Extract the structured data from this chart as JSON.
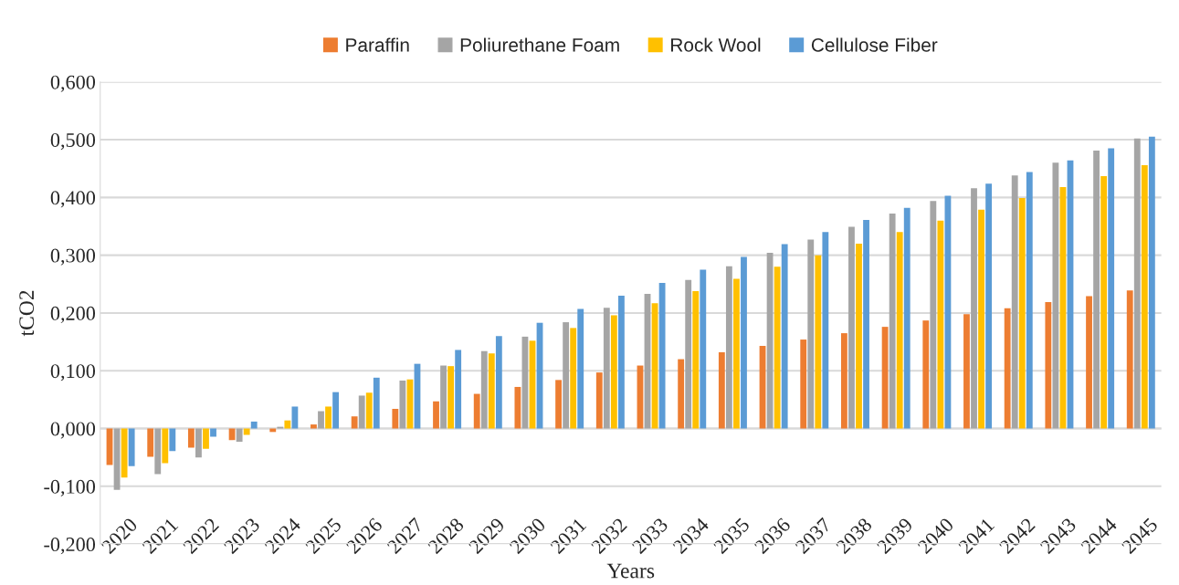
{
  "chart_data": {
    "type": "bar",
    "xlabel": "Years",
    "ylabel": "tCO2",
    "categories": [
      "2020",
      "2021",
      "2022",
      "2023",
      "2024",
      "2025",
      "2026",
      "2027",
      "2028",
      "2029",
      "2030",
      "2031",
      "2032",
      "2033",
      "2034",
      "2035",
      "2036",
      "2037",
      "2038",
      "2039",
      "2040",
      "2041",
      "2042",
      "2043",
      "2044",
      "2045"
    ],
    "series": [
      {
        "name": "Paraffin",
        "color": "#ed7d31",
        "values": [
          -0.063,
          -0.049,
          -0.033,
          -0.02,
          -0.006,
          0.007,
          0.021,
          0.034,
          0.047,
          0.06,
          0.072,
          0.084,
          0.097,
          0.109,
          0.12,
          0.132,
          0.143,
          0.154,
          0.165,
          0.176,
          0.187,
          0.198,
          0.208,
          0.219,
          0.229,
          0.239
        ]
      },
      {
        "name": "Poliurethane Foam",
        "color": "#a5a5a5",
        "values": [
          -0.106,
          -0.079,
          -0.05,
          -0.023,
          0.003,
          0.03,
          0.057,
          0.083,
          0.109,
          0.134,
          0.159,
          0.184,
          0.209,
          0.233,
          0.257,
          0.281,
          0.304,
          0.327,
          0.349,
          0.372,
          0.394,
          0.416,
          0.438,
          0.46,
          0.481,
          0.502
        ]
      },
      {
        "name": "Rock Wool",
        "color": "#ffc000",
        "values": [
          -0.085,
          -0.06,
          -0.035,
          -0.011,
          0.014,
          0.038,
          0.062,
          0.085,
          0.108,
          0.13,
          0.152,
          0.174,
          0.196,
          0.217,
          0.238,
          0.259,
          0.28,
          0.3,
          0.32,
          0.34,
          0.36,
          0.379,
          0.399,
          0.418,
          0.437,
          0.456
        ]
      },
      {
        "name": "Cellulose Fiber",
        "color": "#5b9bd5",
        "values": [
          -0.065,
          -0.039,
          -0.014,
          0.012,
          0.038,
          0.063,
          0.088,
          0.112,
          0.136,
          0.16,
          0.183,
          0.207,
          0.23,
          0.252,
          0.275,
          0.297,
          0.319,
          0.34,
          0.361,
          0.382,
          0.403,
          0.424,
          0.444,
          0.464,
          0.485,
          0.505
        ]
      }
    ],
    "ylim": [
      -0.2,
      0.6
    ],
    "yticks": [
      {
        "value": -0.2,
        "label": "-0,200"
      },
      {
        "value": -0.1,
        "label": "-0,100"
      },
      {
        "value": 0,
        "label": "0,000"
      },
      {
        "value": 0.1,
        "label": "0,100"
      },
      {
        "value": 0.2,
        "label": "0,200"
      },
      {
        "value": 0.3,
        "label": "0,300"
      },
      {
        "value": 0.4,
        "label": "0,400"
      },
      {
        "value": 0.5,
        "label": "0,500"
      },
      {
        "value": 0.6,
        "label": "0,600"
      }
    ],
    "grid": "y",
    "legend": "top"
  }
}
